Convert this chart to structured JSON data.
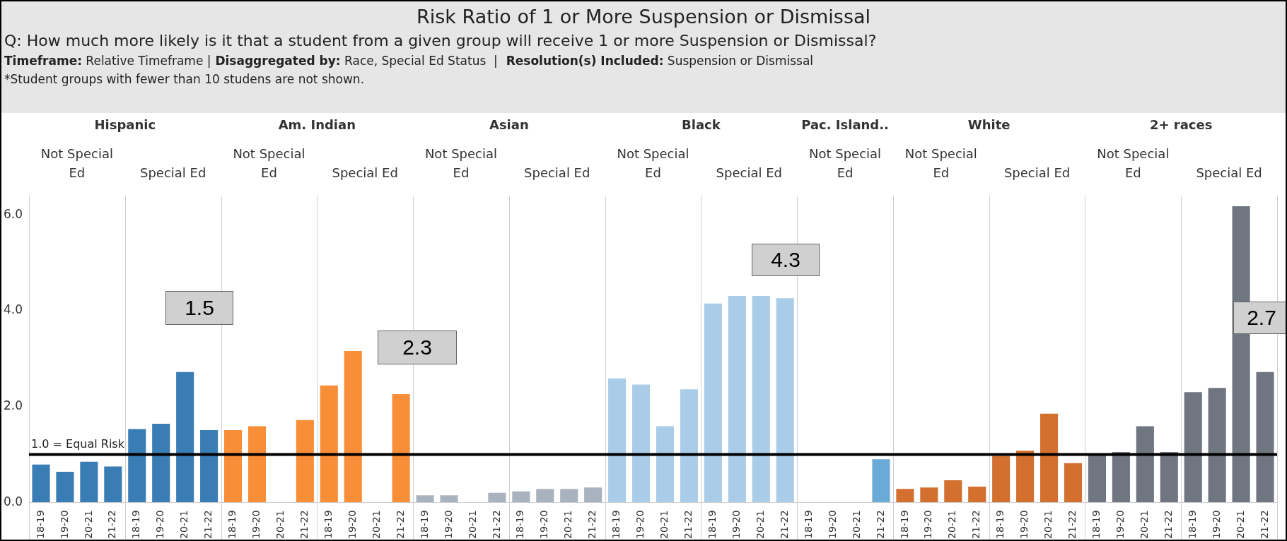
{
  "chart_data": {
    "type": "bar",
    "title": "Risk Ratio of 1 or More Suspension or Dismissal",
    "subtitle": "Q: How much more likely is it that a student from a given group will receive 1 or more Suspension or Dismissal?",
    "categories": [
      "18-19",
      "19-20",
      "20-21",
      "21-22",
      "18-19",
      "19-20",
      "20-21",
      "21-22",
      "18-19",
      "19-20",
      "20-21",
      "21-22",
      "18-19",
      "19-20",
      "20-21",
      "21-22",
      "18-19",
      "19-20",
      "20-21",
      "21-22",
      "18-19",
      "19-20",
      "20-21",
      "21-22",
      "18-19",
      "19-20",
      "20-21",
      "21-22",
      "18-19",
      "19-20",
      "20-21",
      "21-22",
      "18-19",
      "19-20",
      "20-21",
      "21-22",
      "18-19",
      "19-20",
      "20-21",
      "21-22",
      "18-19",
      "19-20",
      "20-21",
      "21-22",
      "18-19",
      "19-20",
      "20-21",
      "21-22",
      "18-19",
      "19-20",
      "20-21",
      "21-22"
    ],
    "values": [
      0.79,
      0.64,
      0.85,
      0.75,
      1.53,
      1.64,
      2.72,
      1.51,
      1.51,
      1.59,
      null,
      1.72,
      2.44,
      3.16,
      null,
      2.26,
      0.15,
      0.15,
      null,
      0.2,
      0.23,
      0.28,
      0.28,
      0.31,
      2.59,
      2.46,
      1.59,
      2.36,
      4.15,
      4.31,
      4.31,
      4.26,
      null,
      null,
      null,
      0.9,
      0.28,
      0.31,
      0.46,
      0.33,
      0.97,
      1.08,
      1.85,
      0.82,
      1.0,
      1.05,
      1.59,
      1.05,
      2.3,
      2.39,
      6.18,
      2.72
    ],
    "colors": [
      "#3a7db5",
      "#3a7db5",
      "#3a7db5",
      "#3a7db5",
      "#3a7db5",
      "#3a7db5",
      "#3a7db5",
      "#3a7db5",
      "#f98e38",
      "#f98e38",
      "#f98e38",
      "#f98e38",
      "#f98e38",
      "#f98e38",
      "#f98e38",
      "#f98e38",
      "#a9b3bf",
      "#a9b3bf",
      "#a9b3bf",
      "#a9b3bf",
      "#a9b3bf",
      "#a9b3bf",
      "#a9b3bf",
      "#a9b3bf",
      "#a9cde9",
      "#a9cde9",
      "#a9cde9",
      "#a9cde9",
      "#a9cde9",
      "#a9cde9",
      "#a9cde9",
      "#a9cde9",
      "#6aaad6",
      "#6aaad6",
      "#6aaad6",
      "#6aaad6",
      "#d4702f",
      "#d4702f",
      "#d4702f",
      "#d4702f",
      "#d4702f",
      "#d4702f",
      "#d4702f",
      "#d4702f",
      "#6f7680",
      "#6f7680",
      "#6f7680",
      "#6f7680",
      "#6f7680",
      "#6f7680",
      "#6f7680",
      "#6f7680"
    ],
    "ylim": [
      0,
      6.4
    ],
    "yticks": [
      {
        "value": 0,
        "label": "0.0"
      },
      {
        "value": 2,
        "label": "2.0"
      },
      {
        "value": 4,
        "label": "4.0"
      },
      {
        "value": 6,
        "label": "6.0"
      }
    ],
    "ref_lines": [
      {
        "axis": "y",
        "value": 1.0,
        "label": "1.0 = Equal Risk",
        "color": "#000000"
      }
    ],
    "annotations": [
      "Timeframe: Relative Timeframe | Disaggregated by: Race, Special Ed Status  |  Resolution(s) Included: Suspension or Dismissal",
      "*Student groups with fewer than 10 studens are not shown.",
      "1.5",
      "2.3",
      "4.3",
      "2.7",
      "Hispanic",
      "Am. Indian",
      "Asian",
      "Black",
      "Pac. Island..",
      "White",
      "2+ races",
      "Not Special Ed",
      "Special Ed",
      "Not Special Ed",
      "Special Ed",
      "Not Special Ed",
      "Special Ed",
      "Not Special Ed",
      "Special Ed",
      "Not Special Ed",
      "Not Special Ed",
      "Special Ed",
      "Not Special Ed",
      "Special Ed"
    ]
  }
}
